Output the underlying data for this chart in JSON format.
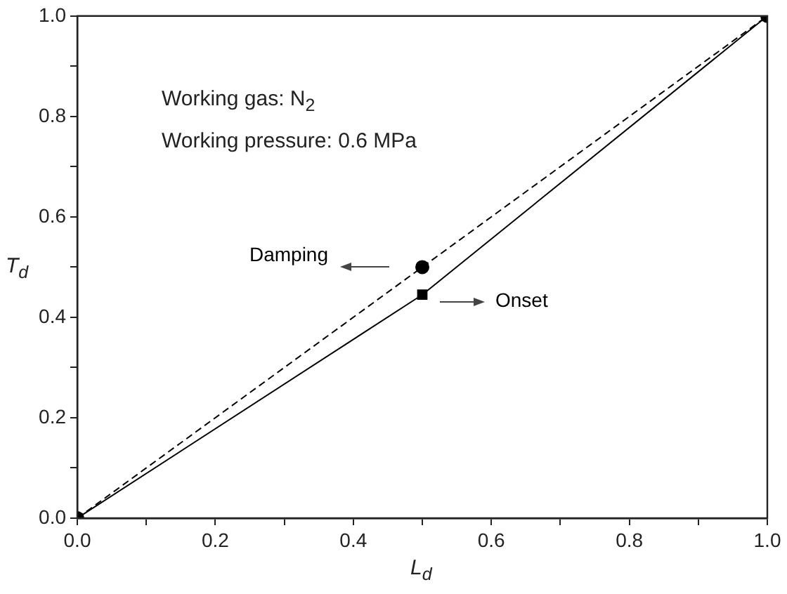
{
  "chart_data": {
    "type": "line",
    "xlabel": "L$_{d}$",
    "ylabel": "T$_{d}$",
    "annotations": [
      "Working gas: N$_{2}$",
      "Working pressure: 0.6 MPa"
    ],
    "x": [
      0,
      0.5,
      1
    ],
    "series": [
      {
        "name": "Damping",
        "color": "#000000",
        "values": [
          0,
          0.5,
          1
        ],
        "marker": "circle",
        "line_style": "dashed"
      },
      {
        "name": "Onset",
        "color": "#000000",
        "values": [
          0,
          0.445,
          1
        ],
        "marker": "square",
        "line_style": "solid"
      }
    ],
    "xlim": [
      0,
      1
    ],
    "ylim": [
      0,
      1
    ],
    "xticks": [
      {
        "value": 0,
        "label": "0.0"
      },
      {
        "value": 0.1,
        "label": null
      },
      0.2,
      {
        "value": 0.3,
        "label": null
      },
      0.4,
      {
        "value": 0.5,
        "label": null
      },
      0.6,
      {
        "value": 0.7,
        "label": null
      },
      0.8,
      {
        "value": 0.9,
        "label": null
      },
      {
        "value": 1,
        "label": "1.0"
      }
    ],
    "yticks": [
      {
        "value": 0,
        "label": "0.0"
      },
      {
        "value": 0.1,
        "label": null
      },
      0.2,
      {
        "value": 0.3,
        "label": null
      },
      0.4,
      {
        "value": 0.5,
        "label": null
      },
      0.6,
      {
        "value": 0.7,
        "label": null
      },
      0.8,
      {
        "value": 0.9,
        "label": null
      },
      {
        "value": 1,
        "label": "1.0"
      }
    ],
    "grid": false,
    "legend": false
  }
}
